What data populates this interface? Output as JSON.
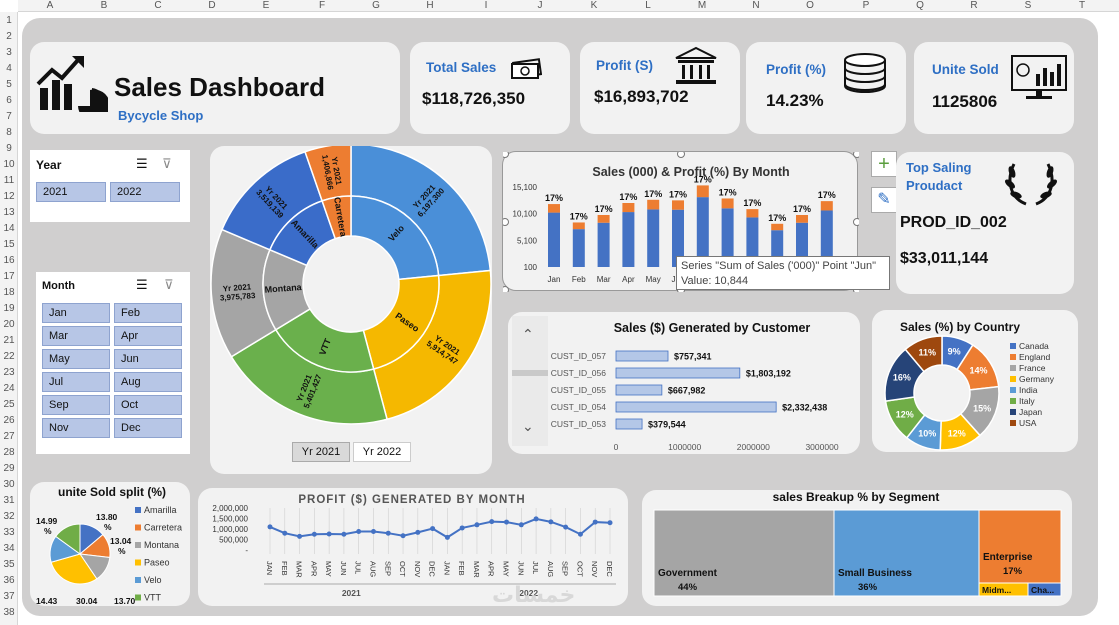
{
  "sheet": {
    "columns": [
      "A",
      "B",
      "C",
      "D",
      "E",
      "F",
      "G",
      "H",
      "I",
      "J",
      "K",
      "L",
      "M",
      "N",
      "O",
      "P",
      "Q",
      "R",
      "S",
      "T"
    ],
    "rows": [
      "1",
      "2",
      "3",
      "4",
      "5",
      "6",
      "7",
      "8",
      "9",
      "10",
      "11",
      "12",
      "13",
      "14",
      "15",
      "16",
      "17",
      "18",
      "19",
      "20",
      "21",
      "22",
      "23",
      "24",
      "25",
      "26",
      "27",
      "28",
      "29",
      "30",
      "31",
      "32",
      "33",
      "34",
      "35",
      "36",
      "37",
      "38"
    ]
  },
  "header": {
    "title": "Sales Dashboard",
    "subtitle": "Bycycle Shop"
  },
  "kpis": [
    {
      "title": "Total Sales",
      "value": "$118,726,350",
      "icon": "money-icon"
    },
    {
      "title": "Profit (S)",
      "value": "$16,893,702",
      "icon": "bank-icon"
    },
    {
      "title": "Profit (%)",
      "value": "14.23%",
      "icon": "coins-icon"
    },
    {
      "title": "Unite Sold",
      "value": "1125806",
      "icon": "monitor-chart-icon"
    }
  ],
  "year_slicer": {
    "label": "Year",
    "items": [
      "2021",
      "2022"
    ]
  },
  "month_slicer": {
    "label": "Month",
    "items": [
      "Jan",
      "Feb",
      "Mar",
      "Apr",
      "May",
      "Jun",
      "Jul",
      "Aug",
      "Sep",
      "Oct",
      "Nov",
      "Dec"
    ]
  },
  "top": {
    "title1": "Top Saling",
    "title2": "Proudact",
    "product": "PROD_ID_002",
    "value": "$33,011,144"
  },
  "year_tabs": [
    "Yr 2021",
    "Yr 2022"
  ],
  "tooltip": {
    "line1": "Series \"Sum of Sales ('000)\" Point \"Jun\"",
    "line2": "Value:  10,844"
  },
  "watermark": "خمسات",
  "chart_data": [
    {
      "type": "pie",
      "id": "sunburst",
      "inner": [
        {
          "label": "Velo",
          "color": "#4a8fd8",
          "value": 21
        },
        {
          "label": "Paseo",
          "color": "#f5b800",
          "value": 20
        },
        {
          "label": "VTT",
          "color": "#6ab04c",
          "value": 19
        },
        {
          "label": "Montana",
          "color": "#a5a5a5",
          "value": 14
        },
        {
          "label": "Amarilla",
          "color": "#3a6cc9",
          "value": 12
        },
        {
          "label": "Carretera",
          "color": "#ed7d31",
          "value": 5
        }
      ],
      "outer": [
        {
          "label": "Yr 2021",
          "value_label": "6,197,300",
          "value": 6197300
        },
        {
          "label": "Yr 2021",
          "value_label": "5,914,747",
          "value": 5914747
        },
        {
          "label": "Yr 2021",
          "value_label": "5,401,427",
          "value": 5401427
        },
        {
          "label": "Yr 2021",
          "value_label": "3,975,783",
          "value": 3975783
        },
        {
          "label": "Yr 2021",
          "value_label": "3,519,139",
          "value": 3519139
        },
        {
          "label": "Yr 2021",
          "value_label": "1,406,866",
          "value": 1406866
        }
      ]
    },
    {
      "type": "bar",
      "id": "monthly",
      "title": "Sales (000) & Profit (%) By Month",
      "categories": [
        "Jan",
        "Feb",
        "Mar",
        "Apr",
        "May",
        "Jun",
        "Jul",
        "Aug",
        "Sep",
        "Oct",
        "Nov",
        "Dec"
      ],
      "yticks": [
        "15,100",
        "10,100",
        "5,100",
        "100"
      ],
      "ylim": [
        100,
        15100
      ],
      "series": [
        {
          "name": "Sum of Sales ('000)",
          "color": "#4472c4",
          "values": [
            10300,
            7200,
            8400,
            10400,
            10900,
            10844,
            13200,
            11100,
            9400,
            7000,
            8400,
            10700
          ]
        },
        {
          "color": "#ed7d31",
          "values": [
            1600,
            1250,
            1450,
            1700,
            1800,
            1750,
            2200,
            1850,
            1550,
            1200,
            1450,
            1750
          ]
        }
      ],
      "labels": [
        "17%",
        "17%",
        "17%",
        "17%",
        "17%",
        "17%",
        "17%",
        "17%",
        "17%",
        "17%",
        "17%",
        "17%"
      ]
    },
    {
      "type": "bar",
      "id": "customers",
      "title": "Sales ($) Generated by Customer",
      "categories": [
        "CUST_ID_057",
        "CUST_ID_056",
        "CUST_ID_055",
        "CUST_ID_054",
        "CUST_ID_053"
      ],
      "values": [
        757341,
        1803192,
        667982,
        2332438,
        379544
      ],
      "value_labels": [
        "$757,341",
        "$1,803,192",
        "$667,982",
        "$2,332,438",
        "$379,544"
      ],
      "xticks": [
        "0",
        "1000000",
        "2000000",
        "3000000"
      ],
      "xlim": [
        0,
        3000000
      ]
    },
    {
      "type": "pie",
      "id": "country",
      "title": "Sales (%) by Country",
      "slices": [
        {
          "name": "Canada",
          "value": 9,
          "label": "9%",
          "color": "#4472c4"
        },
        {
          "name": "England",
          "value": 14,
          "label": "14%",
          "color": "#ed7d31"
        },
        {
          "name": "France",
          "value": 15,
          "label": "15%",
          "color": "#a5a5a5"
        },
        {
          "name": "Germany",
          "value": 12,
          "label": "12%",
          "color": "#ffc000"
        },
        {
          "name": "India",
          "value": 10,
          "label": "10%",
          "color": "#5b9bd5"
        },
        {
          "name": "Italy",
          "value": 12,
          "label": "12%",
          "color": "#70ad47"
        },
        {
          "name": "Japan",
          "value": 16,
          "label": "16%",
          "color": "#264478"
        },
        {
          "name": "USA",
          "value": 11,
          "label": "11%",
          "color": "#9e480e"
        }
      ]
    },
    {
      "type": "pie",
      "id": "units",
      "title": "unite Sold split (%)",
      "slices": [
        {
          "name": "Amarilla",
          "value": 13.8,
          "label": "13.80 %",
          "color": "#4472c4"
        },
        {
          "name": "Carretera",
          "value": 13.04,
          "label": "13.04 %",
          "color": "#ed7d31"
        },
        {
          "name": "Montana",
          "value": 13.7,
          "label": "13.70",
          "color": "#a5a5a5"
        },
        {
          "name": "Paseo",
          "value": 30.04,
          "label": "30.04",
          "color": "#ffc000"
        },
        {
          "name": "Velo",
          "value": 14.43,
          "label": "14.43",
          "color": "#5b9bd5"
        },
        {
          "name": "VTT",
          "value": 14.99,
          "label": "14.99 %",
          "color": "#70ad47"
        }
      ]
    },
    {
      "type": "line",
      "id": "profit",
      "title": "PROFIT ($) GENERATED BY MONTH",
      "categories": [
        "JAN",
        "FEB",
        "MAR",
        "APR",
        "MAY",
        "JUN",
        "JUL",
        "AUG",
        "SEP",
        "OCT",
        "NOV",
        "DEC",
        "JAN",
        "FEB",
        "MAR",
        "APR",
        "MAY",
        "JUN",
        "JUL",
        "AUG",
        "SEP",
        "OCT",
        "NOV",
        "DEC"
      ],
      "groups": [
        "2021",
        "2022"
      ],
      "yticks": [
        "2,000,000",
        "1,500,000",
        "1,000,000",
        "500,000",
        "-"
      ],
      "ylim": [
        0,
        2000000
      ],
      "values": [
        1100000,
        800000,
        650000,
        750000,
        760000,
        750000,
        880000,
        880000,
        800000,
        680000,
        840000,
        1020000,
        600000,
        1050000,
        1200000,
        1350000,
        1330000,
        1200000,
        1480000,
        1340000,
        1090000,
        750000,
        1330000,
        1300000
      ]
    },
    {
      "type": "heatmap",
      "id": "segment",
      "title": "sales Breakup % by Segment",
      "cells": [
        {
          "name": "Government",
          "label": "44%",
          "color": "#a5a5a5"
        },
        {
          "name": "Small Business",
          "label": "36%",
          "color": "#5b9bd5"
        },
        {
          "name": "Enterprise",
          "label": "17%",
          "color": "#ed7d31"
        },
        {
          "name": "Midm...",
          "color": "#ffc000"
        },
        {
          "name": "Cha...",
          "color": "#4472c4"
        }
      ]
    }
  ]
}
